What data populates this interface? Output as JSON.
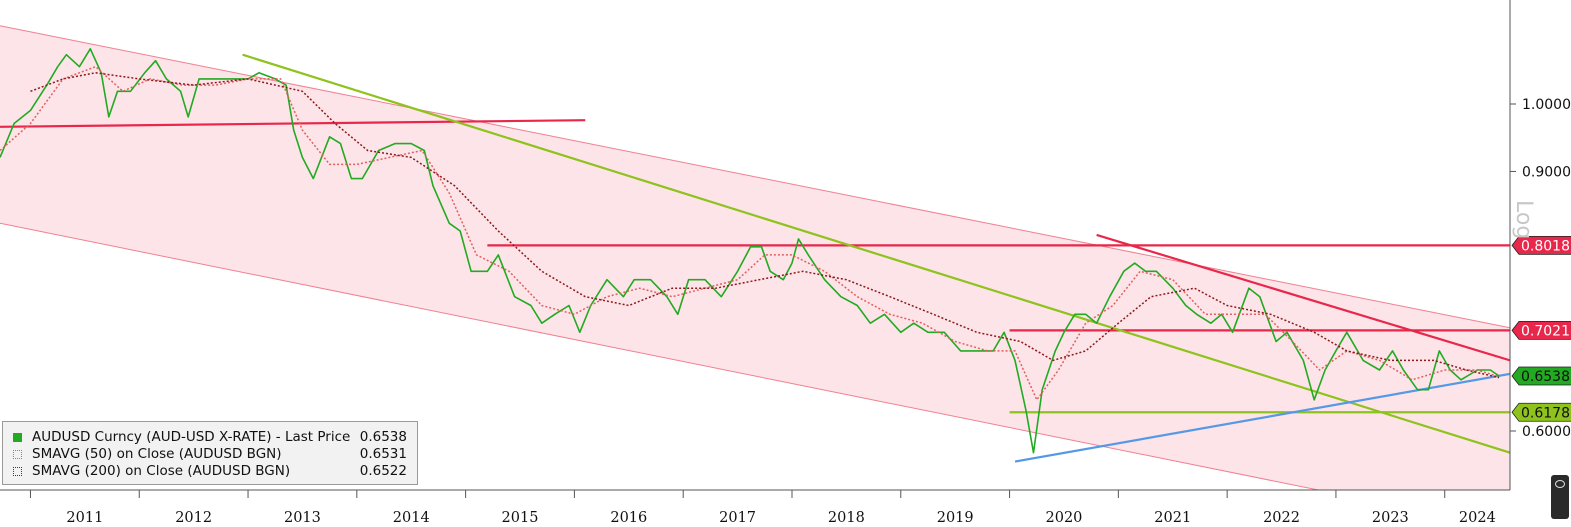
{
  "chart_data": {
    "type": "line",
    "title": "",
    "scale": "log",
    "ylim": [
      0.56,
      1.12
    ],
    "grid": false,
    "x_tick_labels": [
      "2011",
      "2012",
      "2013",
      "2014",
      "2015",
      "2016",
      "2017",
      "2018",
      "2019",
      "2020",
      "2021",
      "2022",
      "2023",
      "2024"
    ],
    "y_tick_labels": [
      "1.0000",
      "0.9000",
      "0.6000"
    ],
    "y_ticks": [
      1.0,
      0.9,
      0.6
    ],
    "x_range": [
      2010.72,
      2024.6
    ],
    "series": [
      {
        "name": "AUDUSD Curncy (AUD-USD X-RATE) - Last Price",
        "color": "#22aa22",
        "last_value": "0.6538",
        "points": [
          [
            2010.72,
            0.92
          ],
          [
            2010.85,
            0.97
          ],
          [
            2011.0,
            0.99
          ],
          [
            2011.15,
            1.03
          ],
          [
            2011.25,
            1.06
          ],
          [
            2011.33,
            1.08
          ],
          [
            2011.45,
            1.06
          ],
          [
            2011.55,
            1.09
          ],
          [
            2011.65,
            1.05
          ],
          [
            2011.72,
            0.98
          ],
          [
            2011.8,
            1.02
          ],
          [
            2011.92,
            1.02
          ],
          [
            2012.05,
            1.05
          ],
          [
            2012.15,
            1.07
          ],
          [
            2012.25,
            1.04
          ],
          [
            2012.38,
            1.02
          ],
          [
            2012.45,
            0.98
          ],
          [
            2012.55,
            1.04
          ],
          [
            2012.7,
            1.04
          ],
          [
            2012.85,
            1.04
          ],
          [
            2013.0,
            1.04
          ],
          [
            2013.1,
            1.05
          ],
          [
            2013.25,
            1.04
          ],
          [
            2013.35,
            1.03
          ],
          [
            2013.42,
            0.96
          ],
          [
            2013.5,
            0.92
          ],
          [
            2013.6,
            0.89
          ],
          [
            2013.75,
            0.95
          ],
          [
            2013.85,
            0.94
          ],
          [
            2013.95,
            0.89
          ],
          [
            2014.05,
            0.89
          ],
          [
            2014.2,
            0.93
          ],
          [
            2014.35,
            0.94
          ],
          [
            2014.5,
            0.94
          ],
          [
            2014.62,
            0.93
          ],
          [
            2014.7,
            0.88
          ],
          [
            2014.85,
            0.83
          ],
          [
            2014.95,
            0.82
          ],
          [
            2015.05,
            0.77
          ],
          [
            2015.2,
            0.77
          ],
          [
            2015.3,
            0.79
          ],
          [
            2015.45,
            0.74
          ],
          [
            2015.6,
            0.73
          ],
          [
            2015.7,
            0.71
          ],
          [
            2015.82,
            0.72
          ],
          [
            2015.95,
            0.73
          ],
          [
            2016.05,
            0.7
          ],
          [
            2016.15,
            0.73
          ],
          [
            2016.3,
            0.76
          ],
          [
            2016.45,
            0.74
          ],
          [
            2016.55,
            0.76
          ],
          [
            2016.7,
            0.76
          ],
          [
            2016.85,
            0.74
          ],
          [
            2016.95,
            0.72
          ],
          [
            2017.05,
            0.76
          ],
          [
            2017.2,
            0.76
          ],
          [
            2017.35,
            0.74
          ],
          [
            2017.5,
            0.77
          ],
          [
            2017.62,
            0.8
          ],
          [
            2017.72,
            0.8
          ],
          [
            2017.8,
            0.77
          ],
          [
            2017.92,
            0.76
          ],
          [
            2018.0,
            0.78
          ],
          [
            2018.06,
            0.81
          ],
          [
            2018.15,
            0.79
          ],
          [
            2018.3,
            0.76
          ],
          [
            2018.45,
            0.74
          ],
          [
            2018.6,
            0.73
          ],
          [
            2018.72,
            0.71
          ],
          [
            2018.85,
            0.72
          ],
          [
            2019.0,
            0.7
          ],
          [
            2019.12,
            0.71
          ],
          [
            2019.25,
            0.7
          ],
          [
            2019.4,
            0.7
          ],
          [
            2019.55,
            0.68
          ],
          [
            2019.7,
            0.68
          ],
          [
            2019.85,
            0.68
          ],
          [
            2019.95,
            0.7
          ],
          [
            2020.05,
            0.67
          ],
          [
            2020.15,
            0.62
          ],
          [
            2020.22,
            0.58
          ],
          [
            2020.3,
            0.64
          ],
          [
            2020.42,
            0.68
          ],
          [
            2020.5,
            0.7
          ],
          [
            2020.6,
            0.72
          ],
          [
            2020.7,
            0.72
          ],
          [
            2020.8,
            0.71
          ],
          [
            2020.92,
            0.74
          ],
          [
            2021.05,
            0.77
          ],
          [
            2021.15,
            0.78
          ],
          [
            2021.25,
            0.77
          ],
          [
            2021.35,
            0.77
          ],
          [
            2021.5,
            0.75
          ],
          [
            2021.62,
            0.73
          ],
          [
            2021.72,
            0.72
          ],
          [
            2021.85,
            0.71
          ],
          [
            2021.95,
            0.72
          ],
          [
            2022.05,
            0.7
          ],
          [
            2022.2,
            0.75
          ],
          [
            2022.3,
            0.74
          ],
          [
            2022.45,
            0.69
          ],
          [
            2022.55,
            0.7
          ],
          [
            2022.7,
            0.67
          ],
          [
            2022.8,
            0.63
          ],
          [
            2022.9,
            0.66
          ],
          [
            2023.0,
            0.68
          ],
          [
            2023.1,
            0.7
          ],
          [
            2023.25,
            0.67
          ],
          [
            2023.4,
            0.66
          ],
          [
            2023.52,
            0.68
          ],
          [
            2023.62,
            0.66
          ],
          [
            2023.75,
            0.64
          ],
          [
            2023.85,
            0.64
          ],
          [
            2023.95,
            0.68
          ],
          [
            2024.05,
            0.66
          ],
          [
            2024.15,
            0.65
          ],
          [
            2024.3,
            0.66
          ],
          [
            2024.42,
            0.66
          ],
          [
            2024.5,
            0.6538
          ]
        ]
      },
      {
        "name": "SMAVG (50) on Close (AUDUSD BGN)",
        "color": "#e06060",
        "last_value": "0.6531",
        "points": [
          [
            2010.72,
            0.93
          ],
          [
            2011.0,
            0.97
          ],
          [
            2011.3,
            1.04
          ],
          [
            2011.6,
            1.06
          ],
          [
            2011.85,
            1.02
          ],
          [
            2012.1,
            1.04
          ],
          [
            2012.4,
            1.03
          ],
          [
            2012.7,
            1.03
          ],
          [
            2013.0,
            1.04
          ],
          [
            2013.3,
            1.04
          ],
          [
            2013.5,
            0.96
          ],
          [
            2013.75,
            0.91
          ],
          [
            2014.0,
            0.91
          ],
          [
            2014.3,
            0.92
          ],
          [
            2014.6,
            0.93
          ],
          [
            2014.85,
            0.87
          ],
          [
            2015.1,
            0.79
          ],
          [
            2015.4,
            0.77
          ],
          [
            2015.7,
            0.73
          ],
          [
            2016.0,
            0.72
          ],
          [
            2016.3,
            0.74
          ],
          [
            2016.6,
            0.75
          ],
          [
            2016.9,
            0.74
          ],
          [
            2017.2,
            0.75
          ],
          [
            2017.5,
            0.76
          ],
          [
            2017.75,
            0.79
          ],
          [
            2018.0,
            0.79
          ],
          [
            2018.3,
            0.77
          ],
          [
            2018.6,
            0.74
          ],
          [
            2018.9,
            0.72
          ],
          [
            2019.2,
            0.71
          ],
          [
            2019.5,
            0.69
          ],
          [
            2019.8,
            0.68
          ],
          [
            2020.05,
            0.68
          ],
          [
            2020.25,
            0.63
          ],
          [
            2020.45,
            0.66
          ],
          [
            2020.7,
            0.71
          ],
          [
            2020.95,
            0.73
          ],
          [
            2021.2,
            0.77
          ],
          [
            2021.5,
            0.76
          ],
          [
            2021.8,
            0.72
          ],
          [
            2022.1,
            0.72
          ],
          [
            2022.35,
            0.72
          ],
          [
            2022.6,
            0.69
          ],
          [
            2022.85,
            0.66
          ],
          [
            2023.1,
            0.68
          ],
          [
            2023.4,
            0.67
          ],
          [
            2023.7,
            0.65
          ],
          [
            2024.0,
            0.66
          ],
          [
            2024.3,
            0.66
          ],
          [
            2024.5,
            0.6531
          ]
        ]
      },
      {
        "name": "SMAVG (200) on Close (AUDUSD BGN)",
        "color": "#8b1a1a",
        "last_value": "0.6522",
        "points": [
          [
            2011.0,
            1.02
          ],
          [
            2011.3,
            1.04
          ],
          [
            2011.6,
            1.05
          ],
          [
            2012.0,
            1.04
          ],
          [
            2012.5,
            1.03
          ],
          [
            2013.0,
            1.04
          ],
          [
            2013.5,
            1.02
          ],
          [
            2013.8,
            0.97
          ],
          [
            2014.1,
            0.93
          ],
          [
            2014.5,
            0.92
          ],
          [
            2014.9,
            0.88
          ],
          [
            2015.3,
            0.82
          ],
          [
            2015.7,
            0.77
          ],
          [
            2016.1,
            0.74
          ],
          [
            2016.5,
            0.73
          ],
          [
            2016.9,
            0.75
          ],
          [
            2017.3,
            0.75
          ],
          [
            2017.7,
            0.76
          ],
          [
            2018.1,
            0.77
          ],
          [
            2018.5,
            0.76
          ],
          [
            2018.9,
            0.74
          ],
          [
            2019.3,
            0.72
          ],
          [
            2019.7,
            0.7
          ],
          [
            2020.1,
            0.69
          ],
          [
            2020.4,
            0.67
          ],
          [
            2020.7,
            0.68
          ],
          [
            2021.0,
            0.71
          ],
          [
            2021.3,
            0.74
          ],
          [
            2021.7,
            0.75
          ],
          [
            2022.0,
            0.73
          ],
          [
            2022.4,
            0.72
          ],
          [
            2022.8,
            0.7
          ],
          [
            2023.1,
            0.68
          ],
          [
            2023.5,
            0.67
          ],
          [
            2023.9,
            0.67
          ],
          [
            2024.2,
            0.66
          ],
          [
            2024.5,
            0.6522
          ]
        ]
      }
    ],
    "price_labels": [
      {
        "value": 0.8018,
        "text": "0.8018",
        "color": "#e8274a"
      },
      {
        "value": 0.7021,
        "text": "0.7021",
        "color": "#e8274a"
      },
      {
        "value": 0.6538,
        "text": "0.6538",
        "color": "#22aa22"
      },
      {
        "value": 0.6178,
        "text": "0.6178",
        "color": "#8ec21c"
      }
    ],
    "annotations": [
      {
        "kind": "channel-band",
        "color": "#fde4e8",
        "upper": [
          [
            2010.72,
            1.13
          ],
          [
            2024.6,
            0.705
          ]
        ],
        "lower": [
          [
            2010.72,
            0.83
          ],
          [
            2024.6,
            0.515
          ]
        ]
      },
      {
        "kind": "trendline",
        "color": "#e8274a",
        "from": [
          2010.72,
          0.965
        ],
        "to": [
          2016.1,
          0.975
        ]
      },
      {
        "kind": "trendline",
        "color": "#e8274a",
        "from": [
          2015.2,
          0.8018
        ],
        "to": [
          2024.6,
          0.8018
        ]
      },
      {
        "kind": "trendline",
        "color": "#e8274a",
        "from": [
          2020.0,
          0.7021
        ],
        "to": [
          2024.6,
          0.7021
        ]
      },
      {
        "kind": "trendline",
        "color": "#8ec21c",
        "from": [
          2020.0,
          0.6178
        ],
        "to": [
          2024.6,
          0.6178
        ]
      },
      {
        "kind": "trendline",
        "color": "#8ec21c",
        "from": [
          2012.95,
          1.08
        ],
        "to": [
          2024.6,
          0.58
        ]
      },
      {
        "kind": "trendline",
        "color": "#e8274a",
        "from": [
          2020.8,
          0.815
        ],
        "to": [
          2024.6,
          0.67
        ]
      },
      {
        "kind": "trendline",
        "color": "#5599e6",
        "from": [
          2020.05,
          0.572
        ],
        "to": [
          2024.6,
          0.656
        ]
      }
    ]
  },
  "legend": {
    "items": [
      {
        "label": "AUDUSD Curncy (AUD-USD X-RATE) - Last Price",
        "value": "0.6538",
        "color": "#22aa22"
      },
      {
        "label": "SMAVG (50)  on Close (AUDUSD BGN)",
        "value": "0.6531",
        "color": "#e06060"
      },
      {
        "label": "SMAVG (200)  on Close (AUDUSD BGN)",
        "value": "0.6522",
        "color": "#8b1a1a"
      }
    ]
  },
  "side_label": "Log"
}
